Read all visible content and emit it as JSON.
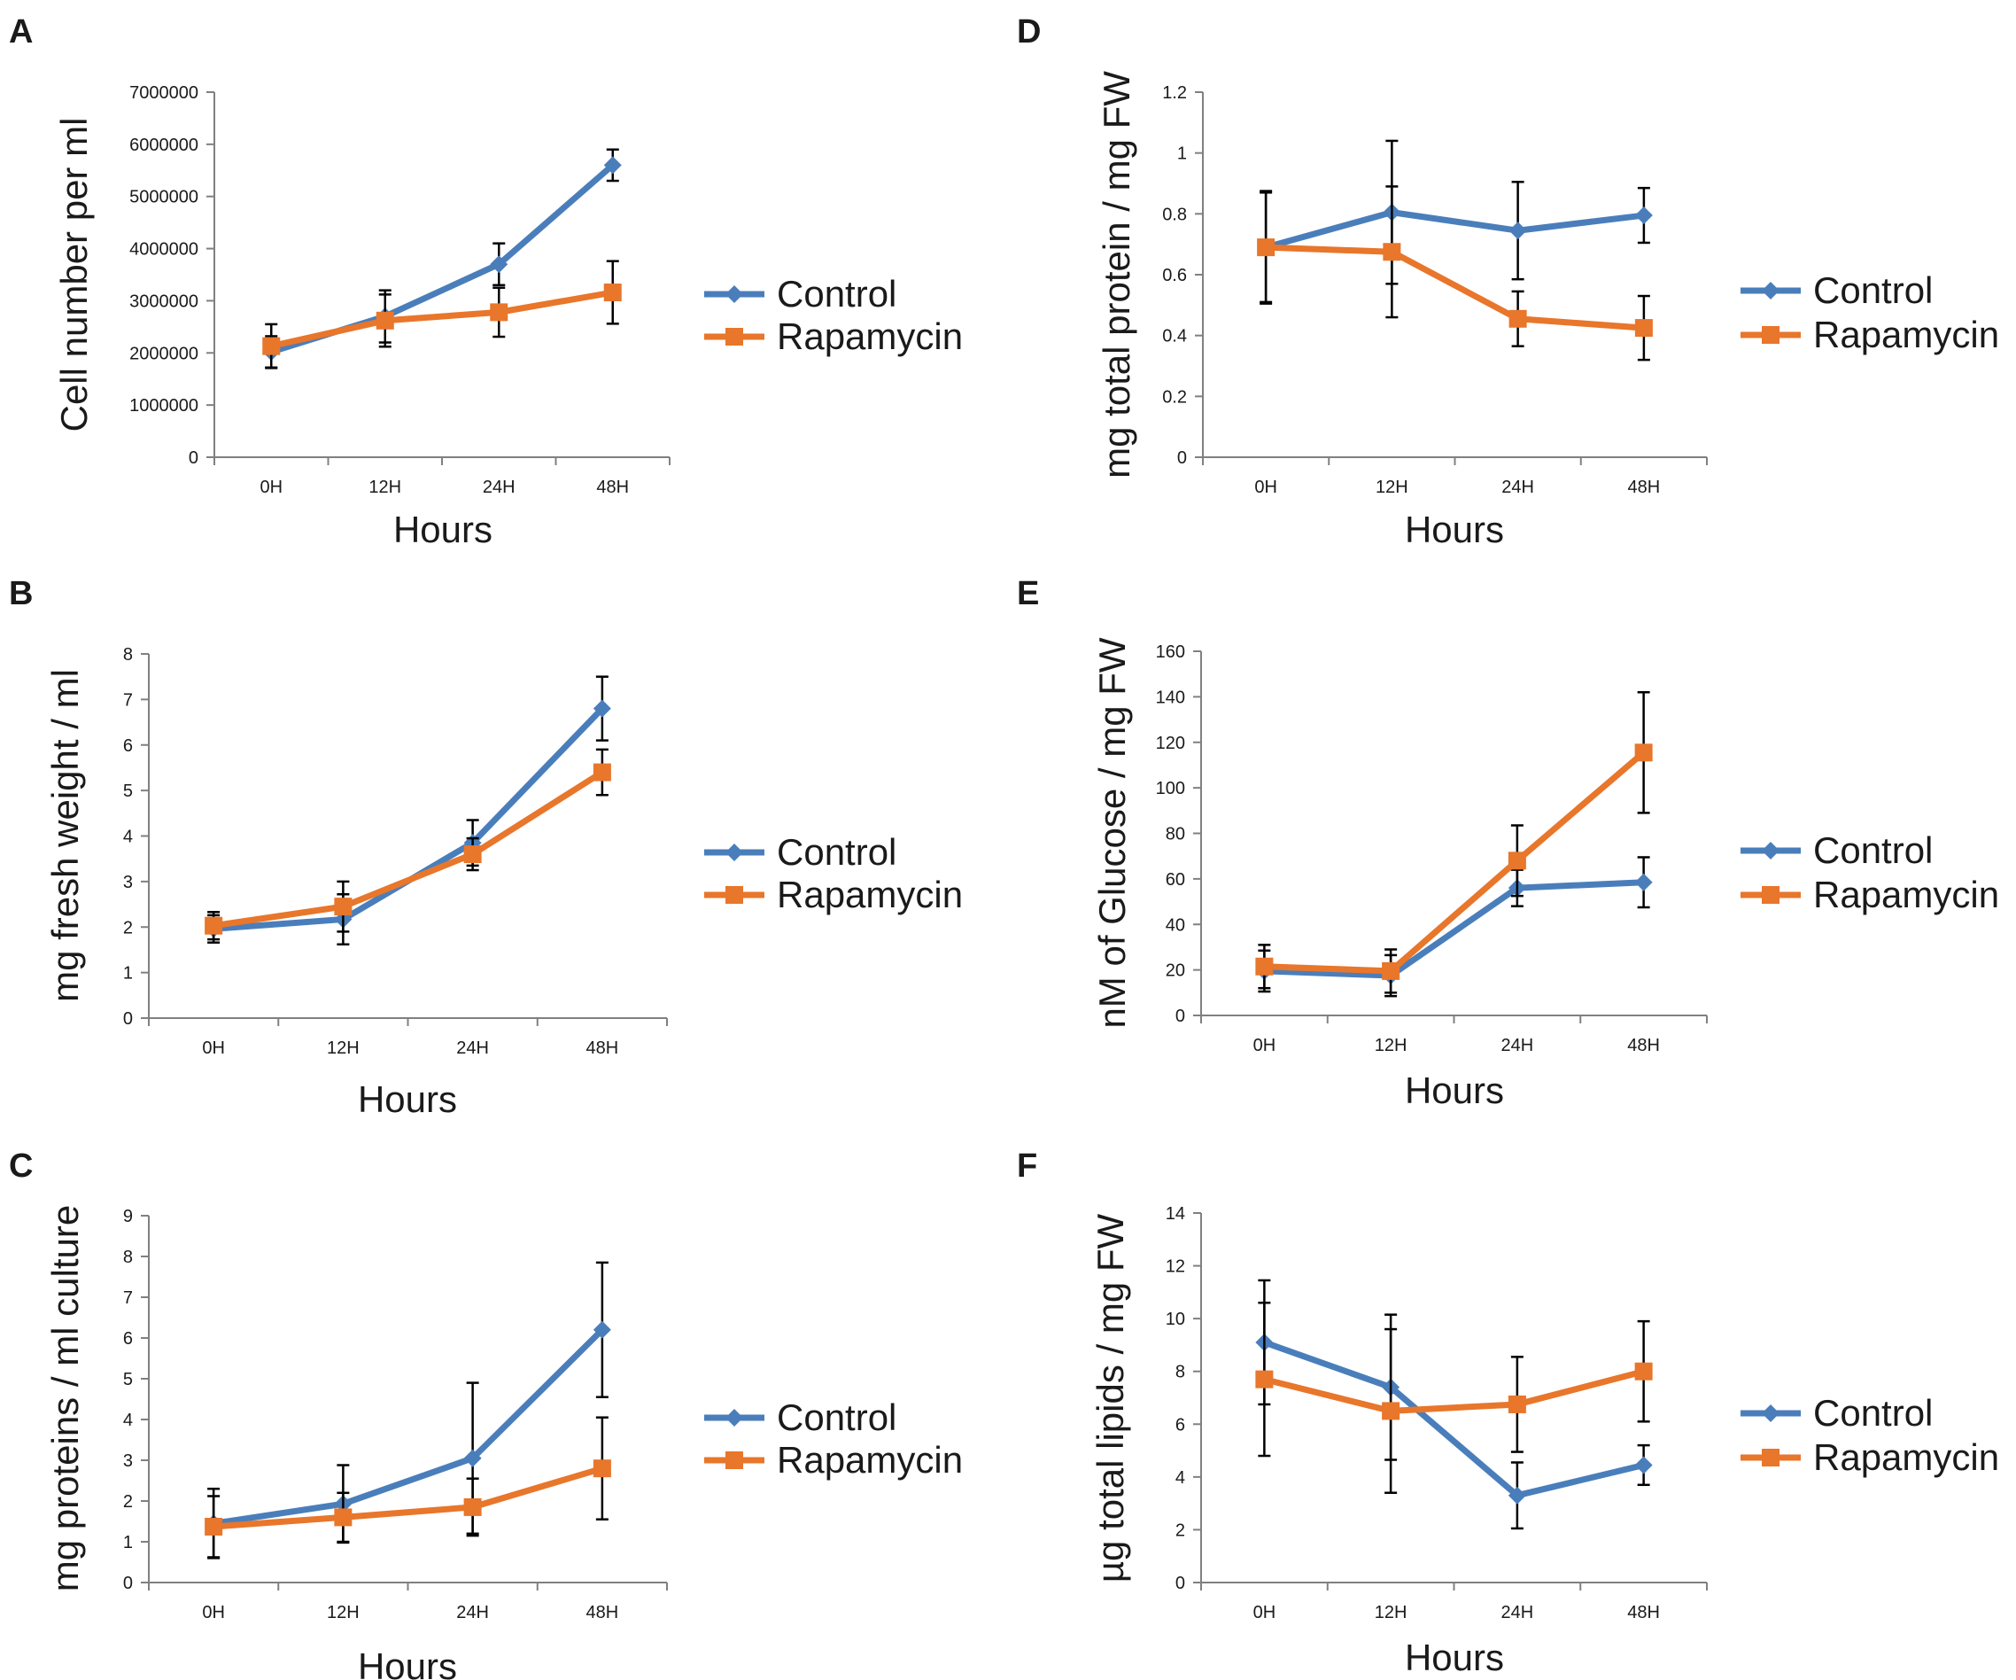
{
  "figure": {
    "colors": {
      "control": "#4a7ebb",
      "rapamycin": "#e8762b",
      "axis": "#808080",
      "text": "#1a1a1a",
      "error": "#000000"
    }
  },
  "chart_data": [
    {
      "panel": "A",
      "type": "line",
      "categories": [
        "0H",
        "12H",
        "24H",
        "48H"
      ],
      "xlabel": "Hours",
      "ylabel": "Cell number per ml",
      "ylim": [
        0,
        7000000
      ],
      "yticks": [
        "0",
        "1000000",
        "2000000",
        "3000000",
        "4000000",
        "5000000",
        "6000000",
        "7000000"
      ],
      "legend": "right",
      "series": [
        {
          "name": "Control",
          "marker": "diamond",
          "values": [
            2020000,
            2700000,
            3700000,
            5600000
          ],
          "errors": [
            300000,
            500000,
            400000,
            300000
          ]
        },
        {
          "name": "Rapamycin",
          "marker": "square",
          "values": [
            2130000,
            2620000,
            2780000,
            3160000
          ],
          "errors": [
            420000,
            500000,
            470000,
            600000
          ]
        }
      ]
    },
    {
      "panel": "B",
      "type": "line",
      "categories": [
        "0H",
        "12H",
        "24H",
        "48H"
      ],
      "xlabel": "Hours",
      "ylabel": "mg fresh weight / ml",
      "ylim": [
        0,
        8
      ],
      "yticks": [
        "0",
        "1",
        "2",
        "3",
        "4",
        "5",
        "6",
        "7",
        "8"
      ],
      "legend": "right",
      "series": [
        {
          "name": "Control",
          "marker": "diamond",
          "values": [
            1.96,
            2.17,
            3.85,
            6.8
          ],
          "errors": [
            0.3,
            0.55,
            0.5,
            0.7
          ]
        },
        {
          "name": "Rapamycin",
          "marker": "square",
          "values": [
            2.03,
            2.45,
            3.6,
            5.4
          ],
          "errors": [
            0.3,
            0.55,
            0.35,
            0.5
          ]
        }
      ]
    },
    {
      "panel": "C",
      "type": "line",
      "categories": [
        "0H",
        "12H",
        "24H",
        "48H"
      ],
      "xlabel": "Hours",
      "ylabel": "mg proteins / ml culture",
      "ylim": [
        0,
        9
      ],
      "yticks": [
        "0",
        "1",
        "2",
        "3",
        "4",
        "5",
        "6",
        "7",
        "8",
        "9"
      ],
      "legend": "right",
      "series": [
        {
          "name": "Control",
          "marker": "diamond",
          "values": [
            1.45,
            1.93,
            3.05,
            6.2
          ],
          "errors": [
            0.85,
            0.95,
            1.85,
            1.65
          ]
        },
        {
          "name": "Rapamycin",
          "marker": "square",
          "values": [
            1.37,
            1.6,
            1.85,
            2.8
          ],
          "errors": [
            0.75,
            0.6,
            0.7,
            1.25
          ]
        }
      ]
    },
    {
      "panel": "D",
      "type": "line",
      "categories": [
        "0H",
        "12H",
        "24H",
        "48H"
      ],
      "xlabel": "Hours",
      "ylabel": "mg total protein / mg FW",
      "ylim": [
        0,
        1.2
      ],
      "yticks": [
        "0",
        "0.2",
        "0.4",
        "0.6",
        "0.8",
        "1",
        "1.2"
      ],
      "legend": "right",
      "series": [
        {
          "name": "Control",
          "marker": "diamond",
          "values": [
            0.69,
            0.805,
            0.745,
            0.795
          ],
          "errors": [
            0.185,
            0.235,
            0.16,
            0.09
          ]
        },
        {
          "name": "Rapamycin",
          "marker": "square",
          "values": [
            0.69,
            0.675,
            0.455,
            0.425
          ],
          "errors": [
            0.18,
            0.215,
            0.09,
            0.105
          ]
        }
      ]
    },
    {
      "panel": "E",
      "type": "line",
      "categories": [
        "0H",
        "12H",
        "24H",
        "48H"
      ],
      "xlabel": "Hours",
      "ylabel": "nM of Glucose / mg FW",
      "ylim": [
        0,
        160
      ],
      "yticks": [
        "0",
        "20",
        "40",
        "60",
        "80",
        "100",
        "120",
        "140",
        "160"
      ],
      "legend": "right",
      "series": [
        {
          "name": "Control",
          "marker": "diamond",
          "values": [
            19.5,
            17.5,
            56,
            58.5
          ],
          "errors": [
            9,
            9,
            8,
            11
          ]
        },
        {
          "name": "Rapamycin",
          "marker": "square",
          "values": [
            21.5,
            19.5,
            68,
            115.5
          ],
          "errors": [
            9.5,
            9.5,
            15.5,
            26.5
          ]
        }
      ]
    },
    {
      "panel": "F",
      "type": "line",
      "categories": [
        "0H",
        "12H",
        "24H",
        "48H"
      ],
      "xlabel": "Hours",
      "ylabel": "µg total lipids / mg FW",
      "ylim": [
        0,
        14
      ],
      "yticks": [
        "0",
        "2",
        "4",
        "6",
        "8",
        "10",
        "12",
        "14"
      ],
      "legend": "right",
      "series": [
        {
          "name": "Control",
          "marker": "diamond",
          "values": [
            9.1,
            7.4,
            3.3,
            4.45
          ],
          "errors": [
            2.35,
            2.75,
            1.25,
            0.75
          ]
        },
        {
          "name": "Rapamycin",
          "marker": "square",
          "values": [
            7.7,
            6.5,
            6.75,
            8.0
          ],
          "errors": [
            2.9,
            3.1,
            1.8,
            1.9
          ]
        }
      ]
    }
  ]
}
